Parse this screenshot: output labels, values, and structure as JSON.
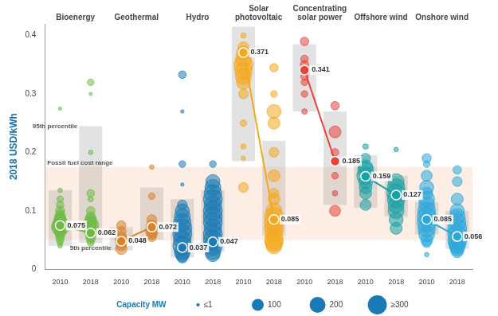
{
  "chart_data": {
    "type": "bubble",
    "y_label": "2018 USD/kWh",
    "categories": [
      "2010",
      "2018",
      "2010",
      "2018",
      "2010",
      "2018",
      "2010",
      "2018",
      "2010",
      "2018",
      "2010",
      "2018",
      "2010",
      "2018"
    ],
    "ylim": [
      0,
      0.42
    ],
    "yticks": [
      0,
      0.1,
      0.2,
      0.3,
      0.4
    ],
    "grid": false,
    "data_labels": true,
    "fossil_fuel_range": [
      0.05,
      0.175
    ],
    "annotations": {
      "fossil_fuel_label": "Fossil fuel cost range",
      "percentile_95_label": "95th percentile",
      "percentile_5_label": "5th percentile"
    },
    "size_legend": {
      "title": "Capacity MW",
      "values": [
        1,
        100,
        200,
        300
      ],
      "labels": [
        "≤1",
        "100",
        "200",
        "≥300"
      ]
    },
    "series": [
      {
        "name": "Bioenergy",
        "color": "#6dbb45",
        "weighted_average": [
          0.075,
          0.062
        ],
        "percentile_5": [
          0.04,
          0.045
        ],
        "percentile_95": [
          0.135,
          0.245
        ],
        "values": [
          [
            0.275,
            0.135,
            0.12,
            0.11,
            0.1,
            0.095,
            0.09,
            0.085,
            0.08,
            0.075,
            0.072,
            0.07,
            0.065,
            0.06,
            0.055,
            0.05,
            0.045,
            0.04
          ],
          [
            0.32,
            0.3,
            0.2,
            0.13,
            0.12,
            0.1,
            0.09,
            0.085,
            0.08,
            0.075,
            0.07,
            0.065,
            0.06,
            0.055,
            0.05,
            0.045
          ]
        ],
        "capacity_mw": [
          [
            1,
            5,
            20,
            30,
            50,
            40,
            80,
            100,
            150,
            200,
            250,
            120,
            90,
            60,
            40,
            30,
            10,
            5
          ],
          [
            20,
            1,
            5,
            30,
            10,
            40,
            60,
            90,
            120,
            200,
            150,
            100,
            80,
            60,
            40,
            20
          ]
        ]
      },
      {
        "name": "Geothermal",
        "color": "#d9822b",
        "weighted_average": [
          0.048,
          0.072
        ],
        "percentile_5": [
          0.032,
          0.05
        ],
        "percentile_95": [
          0.072,
          0.14
        ],
        "values": [
          [
            0.075,
            0.065,
            0.055,
            0.05,
            0.045,
            0.04,
            0.035
          ],
          [
            0.175,
            0.125,
            0.085,
            0.075,
            0.07,
            0.065,
            0.06,
            0.055
          ]
        ],
        "capacity_mw": [
          [
            50,
            60,
            80,
            100,
            70,
            60,
            90
          ],
          [
            5,
            20,
            60,
            80,
            100,
            110,
            70,
            50
          ]
        ]
      },
      {
        "name": "Hydro",
        "color": "#1a7ab5",
        "weighted_average": [
          0.037,
          0.047
        ],
        "percentile_5": [
          0.02,
          0.03
        ],
        "percentile_95": [
          0.12,
          0.135
        ],
        "values": [
          [
            0.333,
            0.27,
            0.18,
            0.145,
            0.11,
            0.1,
            0.09,
            0.08,
            0.07,
            0.06,
            0.05,
            0.04,
            0.03,
            0.025,
            0.02
          ],
          [
            0.18,
            0.15,
            0.14,
            0.13,
            0.12,
            0.11,
            0.1,
            0.09,
            0.08,
            0.07,
            0.06,
            0.05,
            0.04,
            0.03,
            0.025
          ]
        ],
        "capacity_mw": [
          [
            30,
            1,
            20,
            1,
            60,
            150,
            200,
            250,
            300,
            300,
            250,
            300,
            200,
            150,
            80
          ],
          [
            20,
            150,
            200,
            250,
            300,
            250,
            300,
            300,
            300,
            250,
            300,
            300,
            300,
            200,
            150
          ]
        ]
      },
      {
        "name": "Solar photovoltaic",
        "color": "#f4a81d",
        "weighted_average": [
          0.371,
          0.085
        ],
        "percentile_5": [
          0.185,
          0.058
        ],
        "percentile_95": [
          0.415,
          0.22
        ],
        "values": [
          [
            0.4,
            0.38,
            0.37,
            0.36,
            0.35,
            0.34,
            0.33,
            0.32,
            0.3,
            0.25,
            0.21,
            0.19,
            0.14
          ],
          [
            0.345,
            0.3,
            0.27,
            0.25,
            0.2,
            0.16,
            0.13,
            0.12,
            0.1,
            0.09,
            0.08,
            0.07,
            0.06,
            0.05,
            0.045,
            0.04
          ]
        ],
        "capacity_mw": [
          [
            10,
            80,
            150,
            200,
            300,
            250,
            200,
            150,
            60,
            20,
            10,
            5,
            60
          ],
          [
            40,
            20,
            150,
            100,
            60,
            100,
            60,
            100,
            200,
            300,
            300,
            300,
            250,
            300,
            250,
            200
          ]
        ]
      },
      {
        "name": "Concentrating solar power",
        "color": "#e8423b",
        "weighted_average": [
          0.341,
          0.185
        ],
        "percentile_5": [
          0.27,
          0.11
        ],
        "percentile_95": [
          0.385,
          0.27
        ],
        "values": [
          [
            0.39,
            0.36,
            0.35,
            0.33,
            0.32,
            0.3,
            0.27
          ],
          [
            0.28,
            0.235,
            0.2,
            0.16,
            0.13,
            0.1
          ]
        ],
        "capacity_mw": [
          [
            40,
            30,
            40,
            30,
            20,
            20,
            10
          ],
          [
            40,
            100,
            30,
            20,
            10,
            80
          ]
        ]
      },
      {
        "name": "Offshore wind",
        "color": "#17a0a5",
        "weighted_average": [
          0.159,
          0.127
        ],
        "percentile_5": [
          0.105,
          0.09
        ],
        "percentile_95": [
          0.195,
          0.16
        ],
        "values": [
          [
            0.21,
            0.19,
            0.175,
            0.17,
            0.16,
            0.15,
            0.14,
            0.13,
            0.11
          ],
          [
            0.205,
            0.15,
            0.14,
            0.13,
            0.12,
            0.11,
            0.1,
            0.085,
            0.07
          ]
        ],
        "capacity_mw": [
          [
            10,
            60,
            150,
            200,
            250,
            150,
            120,
            100,
            80
          ],
          [
            5,
            200,
            250,
            300,
            250,
            200,
            200,
            150,
            100
          ]
        ]
      },
      {
        "name": "Onshore wind",
        "color": "#2aa7dd",
        "weighted_average": [
          0.085,
          0.056
        ],
        "percentile_5": [
          0.06,
          0.035
        ],
        "percentile_95": [
          0.115,
          0.1
        ],
        "values": [
          [
            0.19,
            0.18,
            0.16,
            0.14,
            0.13,
            0.12,
            0.11,
            0.1,
            0.09,
            0.08,
            0.07,
            0.06,
            0.05,
            0.045,
            0.025
          ],
          [
            0.17,
            0.15,
            0.12,
            0.1,
            0.09,
            0.08,
            0.07,
            0.06,
            0.05,
            0.045,
            0.04,
            0.035,
            0.03
          ]
        ],
        "capacity_mw": [
          [
            50,
            20,
            80,
            150,
            100,
            200,
            200,
            250,
            300,
            300,
            250,
            200,
            100,
            50,
            5
          ],
          [
            40,
            60,
            100,
            150,
            200,
            250,
            300,
            300,
            300,
            250,
            200,
            150,
            100
          ]
        ]
      }
    ]
  }
}
